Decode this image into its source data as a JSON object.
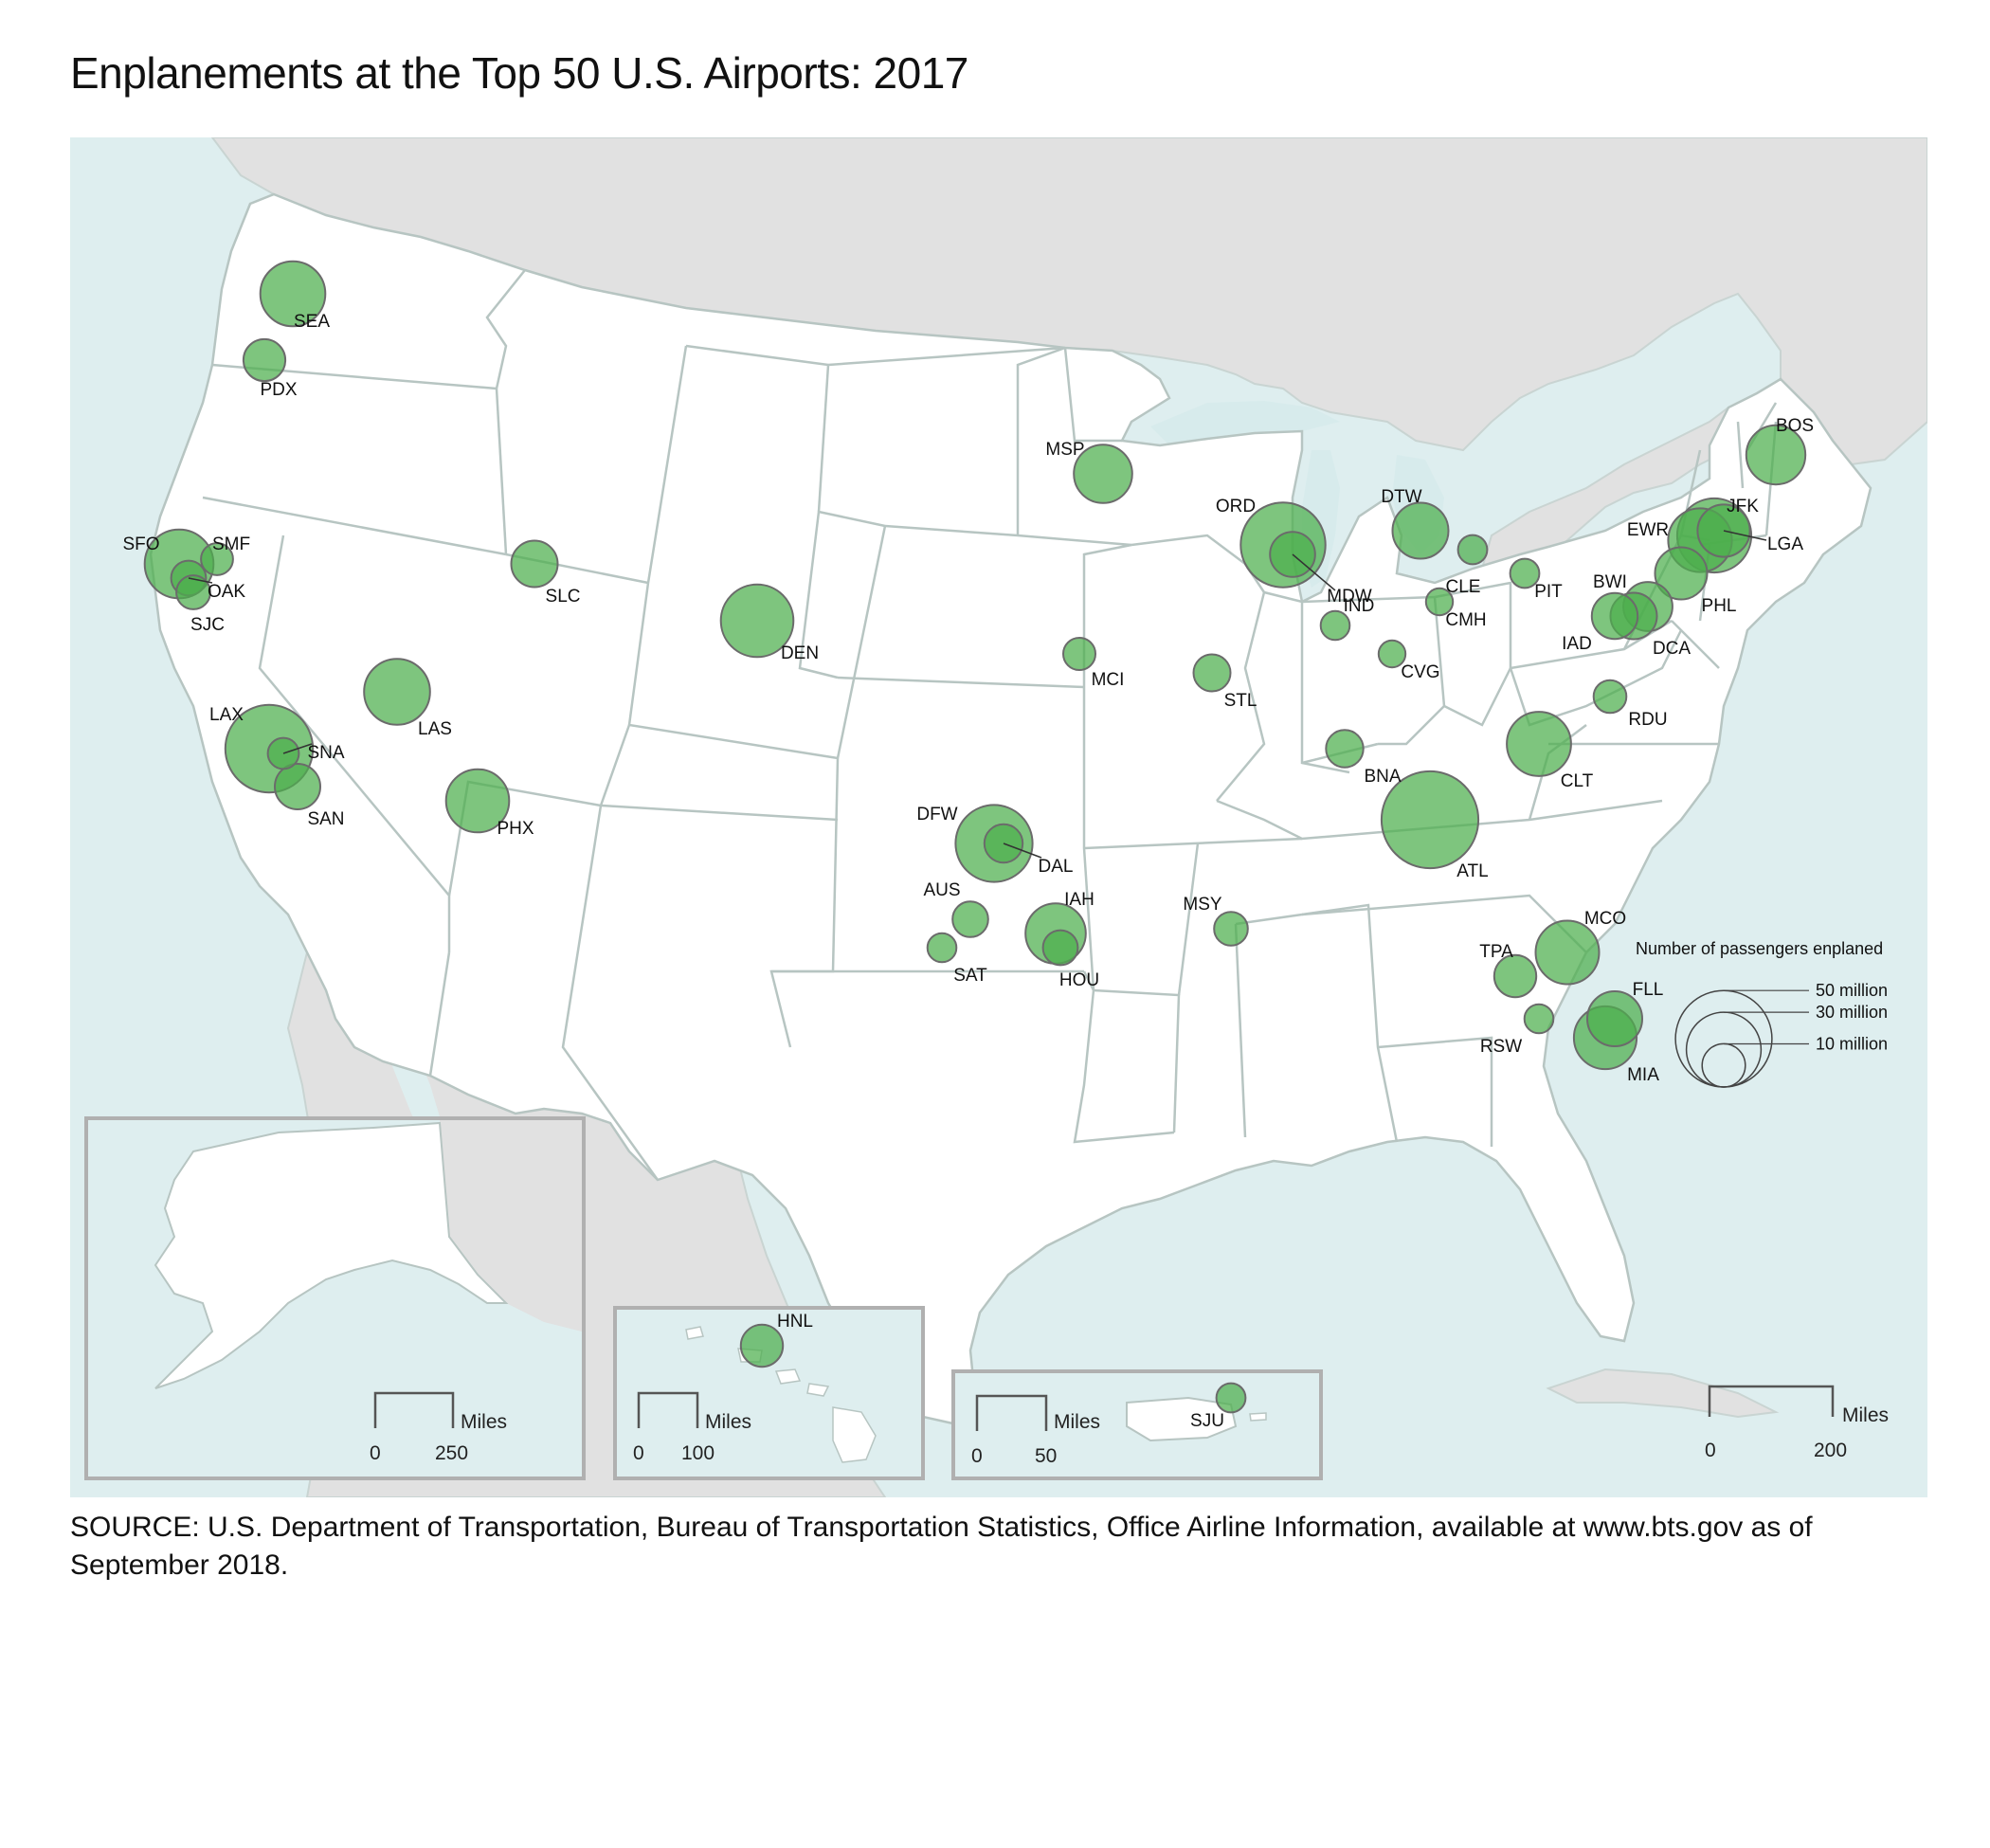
{
  "title": "Enplanements at the Top 50 U.S. Airports: 2017",
  "source": "SOURCE: U.S. Department of Transportation, Bureau of Transportation Statistics, Office Airline Information, available at www.bts.gov as of September 2018.",
  "colors": {
    "water": "#deeeef",
    "land_other": "#e1e1e1",
    "state_fill": "#ffffff",
    "state_border": "#b7c5c2",
    "bubble_fill": "#4cae4c",
    "bubble_stroke": "#6b6b6b",
    "inset_border": "#b0b0b0"
  },
  "legend": {
    "title": "Number of passengers enplaned",
    "items": [
      {
        "value_millions": 50,
        "label": "50 million"
      },
      {
        "value_millions": 30,
        "label": "30 million"
      },
      {
        "value_millions": 10,
        "label": "10 million"
      }
    ]
  },
  "scales": {
    "main": {
      "unit": "Miles",
      "ticks": [
        "0",
        "200"
      ]
    },
    "alaska": {
      "unit": "Miles",
      "ticks": [
        "0",
        "250"
      ]
    },
    "hawaii": {
      "unit": "Miles",
      "ticks": [
        "0",
        "100"
      ]
    },
    "puerto_rico": {
      "unit": "Miles",
      "ticks": [
        "0",
        "50"
      ]
    }
  },
  "airports": [
    {
      "code": "ATL",
      "enplanements_millions": 50.3
    },
    {
      "code": "LAX",
      "enplanements_millions": 41.2
    },
    {
      "code": "ORD",
      "enplanements_millions": 38.6
    },
    {
      "code": "DFW",
      "enplanements_millions": 31.8
    },
    {
      "code": "JFK",
      "enplanements_millions": 29.5
    },
    {
      "code": "DEN",
      "enplanements_millions": 28.3
    },
    {
      "code": "SFO",
      "enplanements_millions": 25.4
    },
    {
      "code": "LAS",
      "enplanements_millions": 23.4
    },
    {
      "code": "SEA",
      "enplanements_millions": 22.7
    },
    {
      "code": "CLT",
      "enplanements_millions": 22.2
    },
    {
      "code": "EWR",
      "enplanements_millions": 21.8
    },
    {
      "code": "MCO",
      "enplanements_millions": 21.6
    },
    {
      "code": "PHX",
      "enplanements_millions": 21.4
    },
    {
      "code": "MIA",
      "enplanements_millions": 21.1
    },
    {
      "code": "IAH",
      "enplanements_millions": 19.5
    },
    {
      "code": "BOS",
      "enplanements_millions": 18.8
    },
    {
      "code": "MSP",
      "enplanements_millions": 18.3
    },
    {
      "code": "DTW",
      "enplanements_millions": 16.8
    },
    {
      "code": "FLL",
      "enplanements_millions": 16.2
    },
    {
      "code": "PHL",
      "enplanements_millions": 14.6
    },
    {
      "code": "LGA",
      "enplanements_millions": 14.7
    },
    {
      "code": "BWI",
      "enplanements_millions": 12.9
    },
    {
      "code": "SLC",
      "enplanements_millions": 11.6
    },
    {
      "code": "DCA",
      "enplanements_millions": 11.6
    },
    {
      "code": "IAD",
      "enplanements_millions": 11.3
    },
    {
      "code": "SAN",
      "enplanements_millions": 11.1
    },
    {
      "code": "MDW",
      "enplanements_millions": 10.9
    },
    {
      "code": "TPA",
      "enplanements_millions": 9.5
    },
    {
      "code": "HNL",
      "enplanements_millions": 9.5
    },
    {
      "code": "PDX",
      "enplanements_millions": 9.4
    },
    {
      "code": "DAL",
      "enplanements_millions": 7.9
    },
    {
      "code": "STL",
      "enplanements_millions": 7.3
    },
    {
      "code": "HOU",
      "enplanements_millions": 6.5
    },
    {
      "code": "BNA",
      "enplanements_millions": 7.5
    },
    {
      "code": "OAK",
      "enplanements_millions": 6.5
    },
    {
      "code": "AUS",
      "enplanements_millions": 6.8
    },
    {
      "code": "MSY",
      "enplanements_millions": 6.1
    },
    {
      "code": "RDU",
      "enplanements_millions": 5.8
    },
    {
      "code": "SJC",
      "enplanements_millions": 6.2
    },
    {
      "code": "SMF",
      "enplanements_millions": 5.5
    },
    {
      "code": "MCI",
      "enplanements_millions": 5.6
    },
    {
      "code": "SNA",
      "enplanements_millions": 5.2
    },
    {
      "code": "CLE",
      "enplanements_millions": 4.6
    },
    {
      "code": "SAT",
      "enplanements_millions": 4.5
    },
    {
      "code": "RSW",
      "enplanements_millions": 4.5
    },
    {
      "code": "IND",
      "enplanements_millions": 4.5
    },
    {
      "code": "PIT",
      "enplanements_millions": 4.6
    },
    {
      "code": "SJU",
      "enplanements_millions": 4.6
    },
    {
      "code": "CVG",
      "enplanements_millions": 3.9
    },
    {
      "code": "CMH",
      "enplanements_millions": 3.9
    }
  ]
}
